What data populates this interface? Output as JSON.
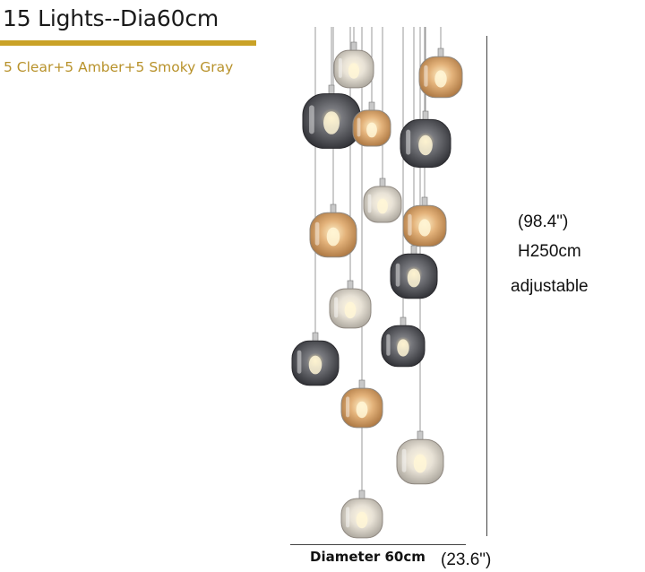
{
  "header": {
    "title": "15 Lights--Dia60cm",
    "subtitle": "5 Clear+5 Amber+5 Smoky Gray"
  },
  "dimensions": {
    "height_inches": "(98.4\")",
    "height_cm": "H250cm",
    "height_note": "adjustable",
    "diameter_label": "Diameter 60cm",
    "diameter_inches": "(23.6\")"
  },
  "colors": {
    "accent_gold": "#c9a227",
    "clear_glass": "#dcd6cc",
    "amber_glass": "#d9a86a",
    "smoky_glass": "#55565c"
  },
  "fixture": {
    "product": "15-light cascading pendant chandelier",
    "pendants": [
      {
        "glass": "clear"
      },
      {
        "glass": "amber"
      },
      {
        "glass": "smoky-gray"
      },
      {
        "glass": "amber"
      },
      {
        "glass": "smoky-gray"
      },
      {
        "glass": "clear"
      },
      {
        "glass": "amber"
      },
      {
        "glass": "amber"
      },
      {
        "glass": "smoky-gray"
      },
      {
        "glass": "clear"
      },
      {
        "glass": "smoky-gray"
      },
      {
        "glass": "smoky-gray"
      },
      {
        "glass": "amber"
      },
      {
        "glass": "clear"
      },
      {
        "glass": "clear"
      }
    ]
  }
}
